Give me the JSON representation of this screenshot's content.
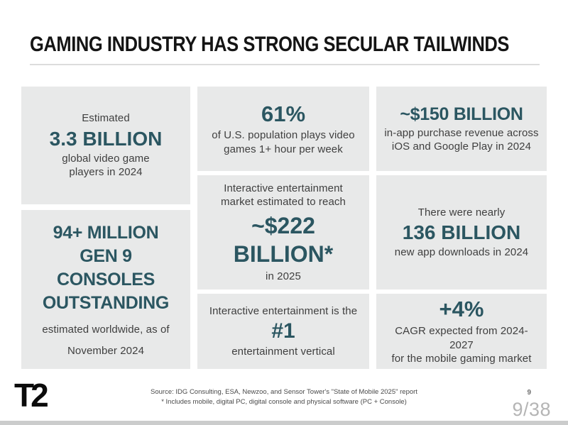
{
  "title": "GAMING INDUSTRY HAS STRONG SECULAR TAILWINDS",
  "colors": {
    "accent_teal": "#2B5661",
    "box_bg": "#E8E9E9",
    "caption_gray": "#3F3F3F"
  },
  "stats": {
    "global_players": {
      "intro": "Estimated",
      "stat": "3.3 BILLION",
      "caption_line1": "global video game",
      "caption_line2": "players in 2024"
    },
    "gen9_consoles": {
      "stat_line1": "94+ MILLION",
      "stat_line2": "GEN 9 CONSOLES",
      "stat_line3": "OUTSTANDING",
      "caption_line1": "estimated worldwide, as of",
      "caption_line2": "November 2024"
    },
    "us_population": {
      "stat": "61%",
      "caption_line1": "of U.S. population plays video",
      "caption_line2": "games 1+ hour per week"
    },
    "market_size": {
      "intro_line1": "Interactive entertainment",
      "intro_line2": "market estimated to reach",
      "stat_line1": "~$222",
      "stat_line2": "BILLION*",
      "caption": "in 2025"
    },
    "entertainment_vertical": {
      "intro": "Interactive entertainment is the",
      "stat": "#1",
      "caption": "entertainment vertical"
    },
    "in_app_revenue": {
      "stat": "~$150 BILLION",
      "caption_line1": "in-app purchase revenue across",
      "caption_line2": "iOS and Google Play in 2024"
    },
    "app_downloads": {
      "intro": "There were nearly",
      "stat": "136 BILLION",
      "caption": "new app downloads in 2024"
    },
    "mobile_cagr": {
      "stat": "+4%",
      "caption_line1": "CAGR expected from 2024-2027",
      "caption_line2": "for the mobile gaming market"
    }
  },
  "footer": {
    "logo_text": "T2",
    "source_line1": "Source:  IDG Consulting, ESA, Newzoo, and Sensor Tower's \"State of Mobile 2025\" report",
    "source_line2": "*  Includes mobile, digital PC, digital console and physical software (PC + Console)",
    "page_number": "9",
    "watermark": "9/38"
  }
}
